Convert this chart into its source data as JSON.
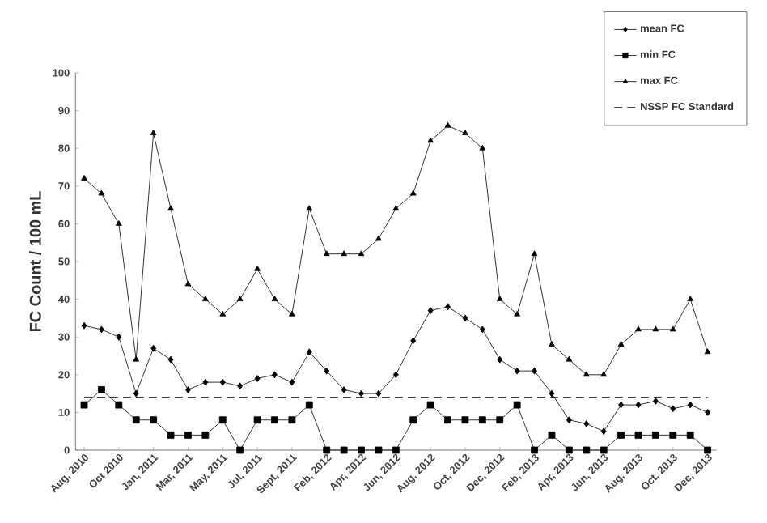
{
  "chart_data": {
    "type": "line",
    "ylabel": "FC Count / 100 mL",
    "categories": [
      "Aug, 2010",
      null,
      "Oct 2010",
      null,
      "Jan, 2011",
      null,
      "Mar, 2011",
      null,
      "May, 2011",
      null,
      "Jul, 2011",
      null,
      "Sept, 2011",
      null,
      "Feb, 2012",
      null,
      "Apr, 2012",
      null,
      "Jun, 2012",
      null,
      "Aug, 2012",
      null,
      "Oct, 2012",
      null,
      "Dec, 2012",
      null,
      "Feb, 2013",
      null,
      "Apr, 2013",
      null,
      "Jun, 2013",
      null,
      "Aug, 2013",
      null,
      "Oct, 2013",
      null,
      "Dec, 2013"
    ],
    "series": [
      {
        "name": "mean FC",
        "color": "#000000",
        "marker": "diamond",
        "values": [
          33,
          32,
          30,
          15,
          27,
          24,
          16,
          18,
          18,
          17,
          19,
          20,
          18,
          26,
          21,
          16,
          15,
          15,
          20,
          29,
          37,
          38,
          35,
          32,
          24,
          21,
          21,
          15,
          8,
          7,
          5,
          12,
          12,
          13,
          11,
          12,
          10
        ]
      },
      {
        "name": "min FC",
        "color": "#000000",
        "marker": "square",
        "values": [
          12,
          16,
          12,
          8,
          8,
          4,
          4,
          4,
          8,
          0,
          8,
          8,
          8,
          12,
          0,
          0,
          0,
          0,
          0,
          8,
          12,
          8,
          8,
          8,
          8,
          12,
          0,
          4,
          0,
          0,
          0,
          4,
          4,
          4,
          4,
          4,
          0
        ]
      },
      {
        "name": "max FC",
        "color": "#000000",
        "marker": "triangle",
        "values": [
          72,
          68,
          60,
          24,
          84,
          64,
          44,
          40,
          36,
          40,
          48,
          40,
          36,
          64,
          52,
          52,
          52,
          56,
          64,
          68,
          82,
          86,
          84,
          80,
          40,
          36,
          52,
          28,
          24,
          20,
          20,
          28,
          32,
          32,
          32,
          40,
          26
        ]
      }
    ],
    "ref_lines": [
      {
        "axis": "y",
        "value": 14,
        "label": "NSSP FC Standard",
        "color": "#000000",
        "line_style": "dashed"
      }
    ],
    "ylim": [
      0,
      100
    ],
    "yticks": [
      0,
      10,
      20,
      30,
      40,
      50,
      60,
      70,
      80,
      90,
      100
    ],
    "grid": false,
    "legend": "top right",
    "line_style": "solid"
  }
}
